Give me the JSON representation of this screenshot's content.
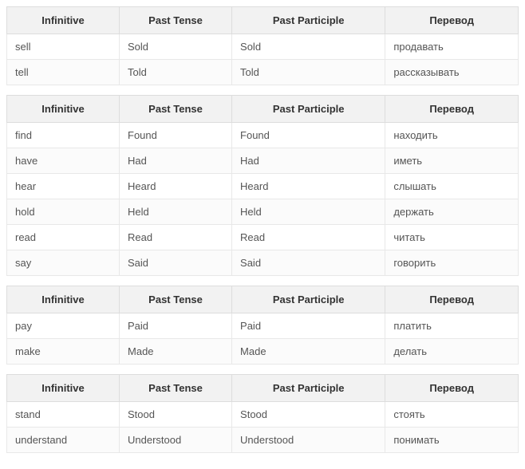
{
  "columns": {
    "c1": "Infinitive",
    "c2": "Past Tense",
    "c3": "Past Participle",
    "c4": "Перевод"
  },
  "col_widths": [
    "22%",
    "22%",
    "30%",
    "26%"
  ],
  "header_bg": "#f2f2f2",
  "border_color": "#dddddd",
  "cell_border_color": "#e8e8e8",
  "text_color": "#333333",
  "cell_text_color": "#555555",
  "font_size": 13,
  "groups": [
    {
      "rows": [
        {
          "inf": "sell",
          "past": "Sold",
          "pp": "Sold",
          "tr": "продавать"
        },
        {
          "inf": "tell",
          "past": "Told",
          "pp": "Told",
          "tr": "рассказывать"
        }
      ]
    },
    {
      "rows": [
        {
          "inf": "find",
          "past": "Found",
          "pp": "Found",
          "tr": "находить"
        },
        {
          "inf": "have",
          "past": "Had",
          "pp": "Had",
          "tr": "иметь"
        },
        {
          "inf": "hear",
          "past": "Heard",
          "pp": "Heard",
          "tr": "слышать"
        },
        {
          "inf": "hold",
          "past": "Held",
          "pp": "Held",
          "tr": "держать"
        },
        {
          "inf": "read",
          "past": "Read",
          "pp": "Read",
          "tr": "читать"
        },
        {
          "inf": "say",
          "past": "Said",
          "pp": "Said",
          "tr": "говорить"
        }
      ]
    },
    {
      "rows": [
        {
          "inf": "pay",
          "past": "Paid",
          "pp": "Paid",
          "tr": "платить"
        },
        {
          "inf": "make",
          "past": "Made",
          "pp": "Made",
          "tr": "делать"
        }
      ]
    },
    {
      "rows": [
        {
          "inf": "stand",
          "past": "Stood",
          "pp": "Stood",
          "tr": "стоять"
        },
        {
          "inf": "understand",
          "past": "Understood",
          "pp": "Understood",
          "tr": "понимать"
        }
      ]
    }
  ]
}
